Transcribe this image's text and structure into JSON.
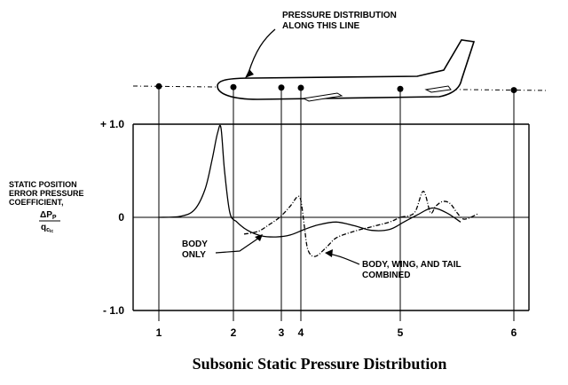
{
  "chart_data": {
    "type": "line",
    "title": "Subsonic Static Pressure Distribution",
    "annotation_line": [
      "PRESSURE DISTRIBUTION",
      "ALONG THIS LINE"
    ],
    "ylabel": [
      "STATIC POSITION",
      "ERROR PRESSURE",
      "COEFFICIENT,"
    ],
    "ylabel_symbol": {
      "num": "ΔP",
      "num_sub": "P",
      "den": "q",
      "den_sub": "c",
      "den_subsub": "ic"
    },
    "y_ticks": [
      {
        "value": 1.0,
        "label": "+ 1.0"
      },
      {
        "value": 0.0,
        "label": "0"
      },
      {
        "value": -1.0,
        "label": "- 1.0"
      }
    ],
    "ylim": [
      -1.0,
      1.0
    ],
    "x_positions": [
      {
        "label": "1",
        "x": 0.0
      },
      {
        "label": "2",
        "x": 0.21
      },
      {
        "label": "3",
        "x": 0.345
      },
      {
        "label": "4",
        "x": 0.4
      },
      {
        "label": "5",
        "x": 0.68
      },
      {
        "label": "6",
        "x": 1.0
      }
    ],
    "series": [
      {
        "name": "BODY ONLY",
        "style": "solid",
        "x": [
          0.0,
          0.06,
          0.1,
          0.13,
          0.15,
          0.165,
          0.175,
          0.185,
          0.2,
          0.22,
          0.25,
          0.29,
          0.33,
          0.37,
          0.41,
          0.45,
          0.5,
          0.55,
          0.6,
          0.65,
          0.69,
          0.73,
          0.77,
          0.81,
          0.85
        ],
        "y": [
          0.0,
          0.01,
          0.08,
          0.3,
          0.62,
          0.9,
          0.96,
          0.5,
          0.05,
          -0.05,
          -0.14,
          -0.2,
          -0.21,
          -0.19,
          -0.13,
          -0.08,
          -0.05,
          -0.09,
          -0.14,
          -0.13,
          -0.05,
          0.03,
          0.1,
          0.05,
          -0.05
        ]
      },
      {
        "name": "BODY, WING, AND TAIL COMBINED",
        "style": "dashed",
        "x": [
          0.24,
          0.28,
          0.31,
          0.34,
          0.37,
          0.39,
          0.4,
          0.41,
          0.42,
          0.44,
          0.47,
          0.5,
          0.55,
          0.6,
          0.65,
          0.68,
          0.72,
          0.745,
          0.765,
          0.78,
          0.8,
          0.82,
          0.84,
          0.86,
          0.9
        ],
        "y": [
          -0.18,
          -0.15,
          -0.08,
          0.0,
          0.12,
          0.22,
          0.18,
          -0.1,
          -0.35,
          -0.42,
          -0.33,
          -0.22,
          -0.15,
          -0.1,
          -0.05,
          0.0,
          0.05,
          0.28,
          0.05,
          0.12,
          0.17,
          0.15,
          0.05,
          -0.02,
          0.04
        ]
      }
    ],
    "series_labels": {
      "body_only": [
        "BODY",
        "ONLY"
      ],
      "combined": [
        "BODY, WING, AND TAIL",
        "COMBINED"
      ]
    },
    "grid": false,
    "legend": "none"
  }
}
